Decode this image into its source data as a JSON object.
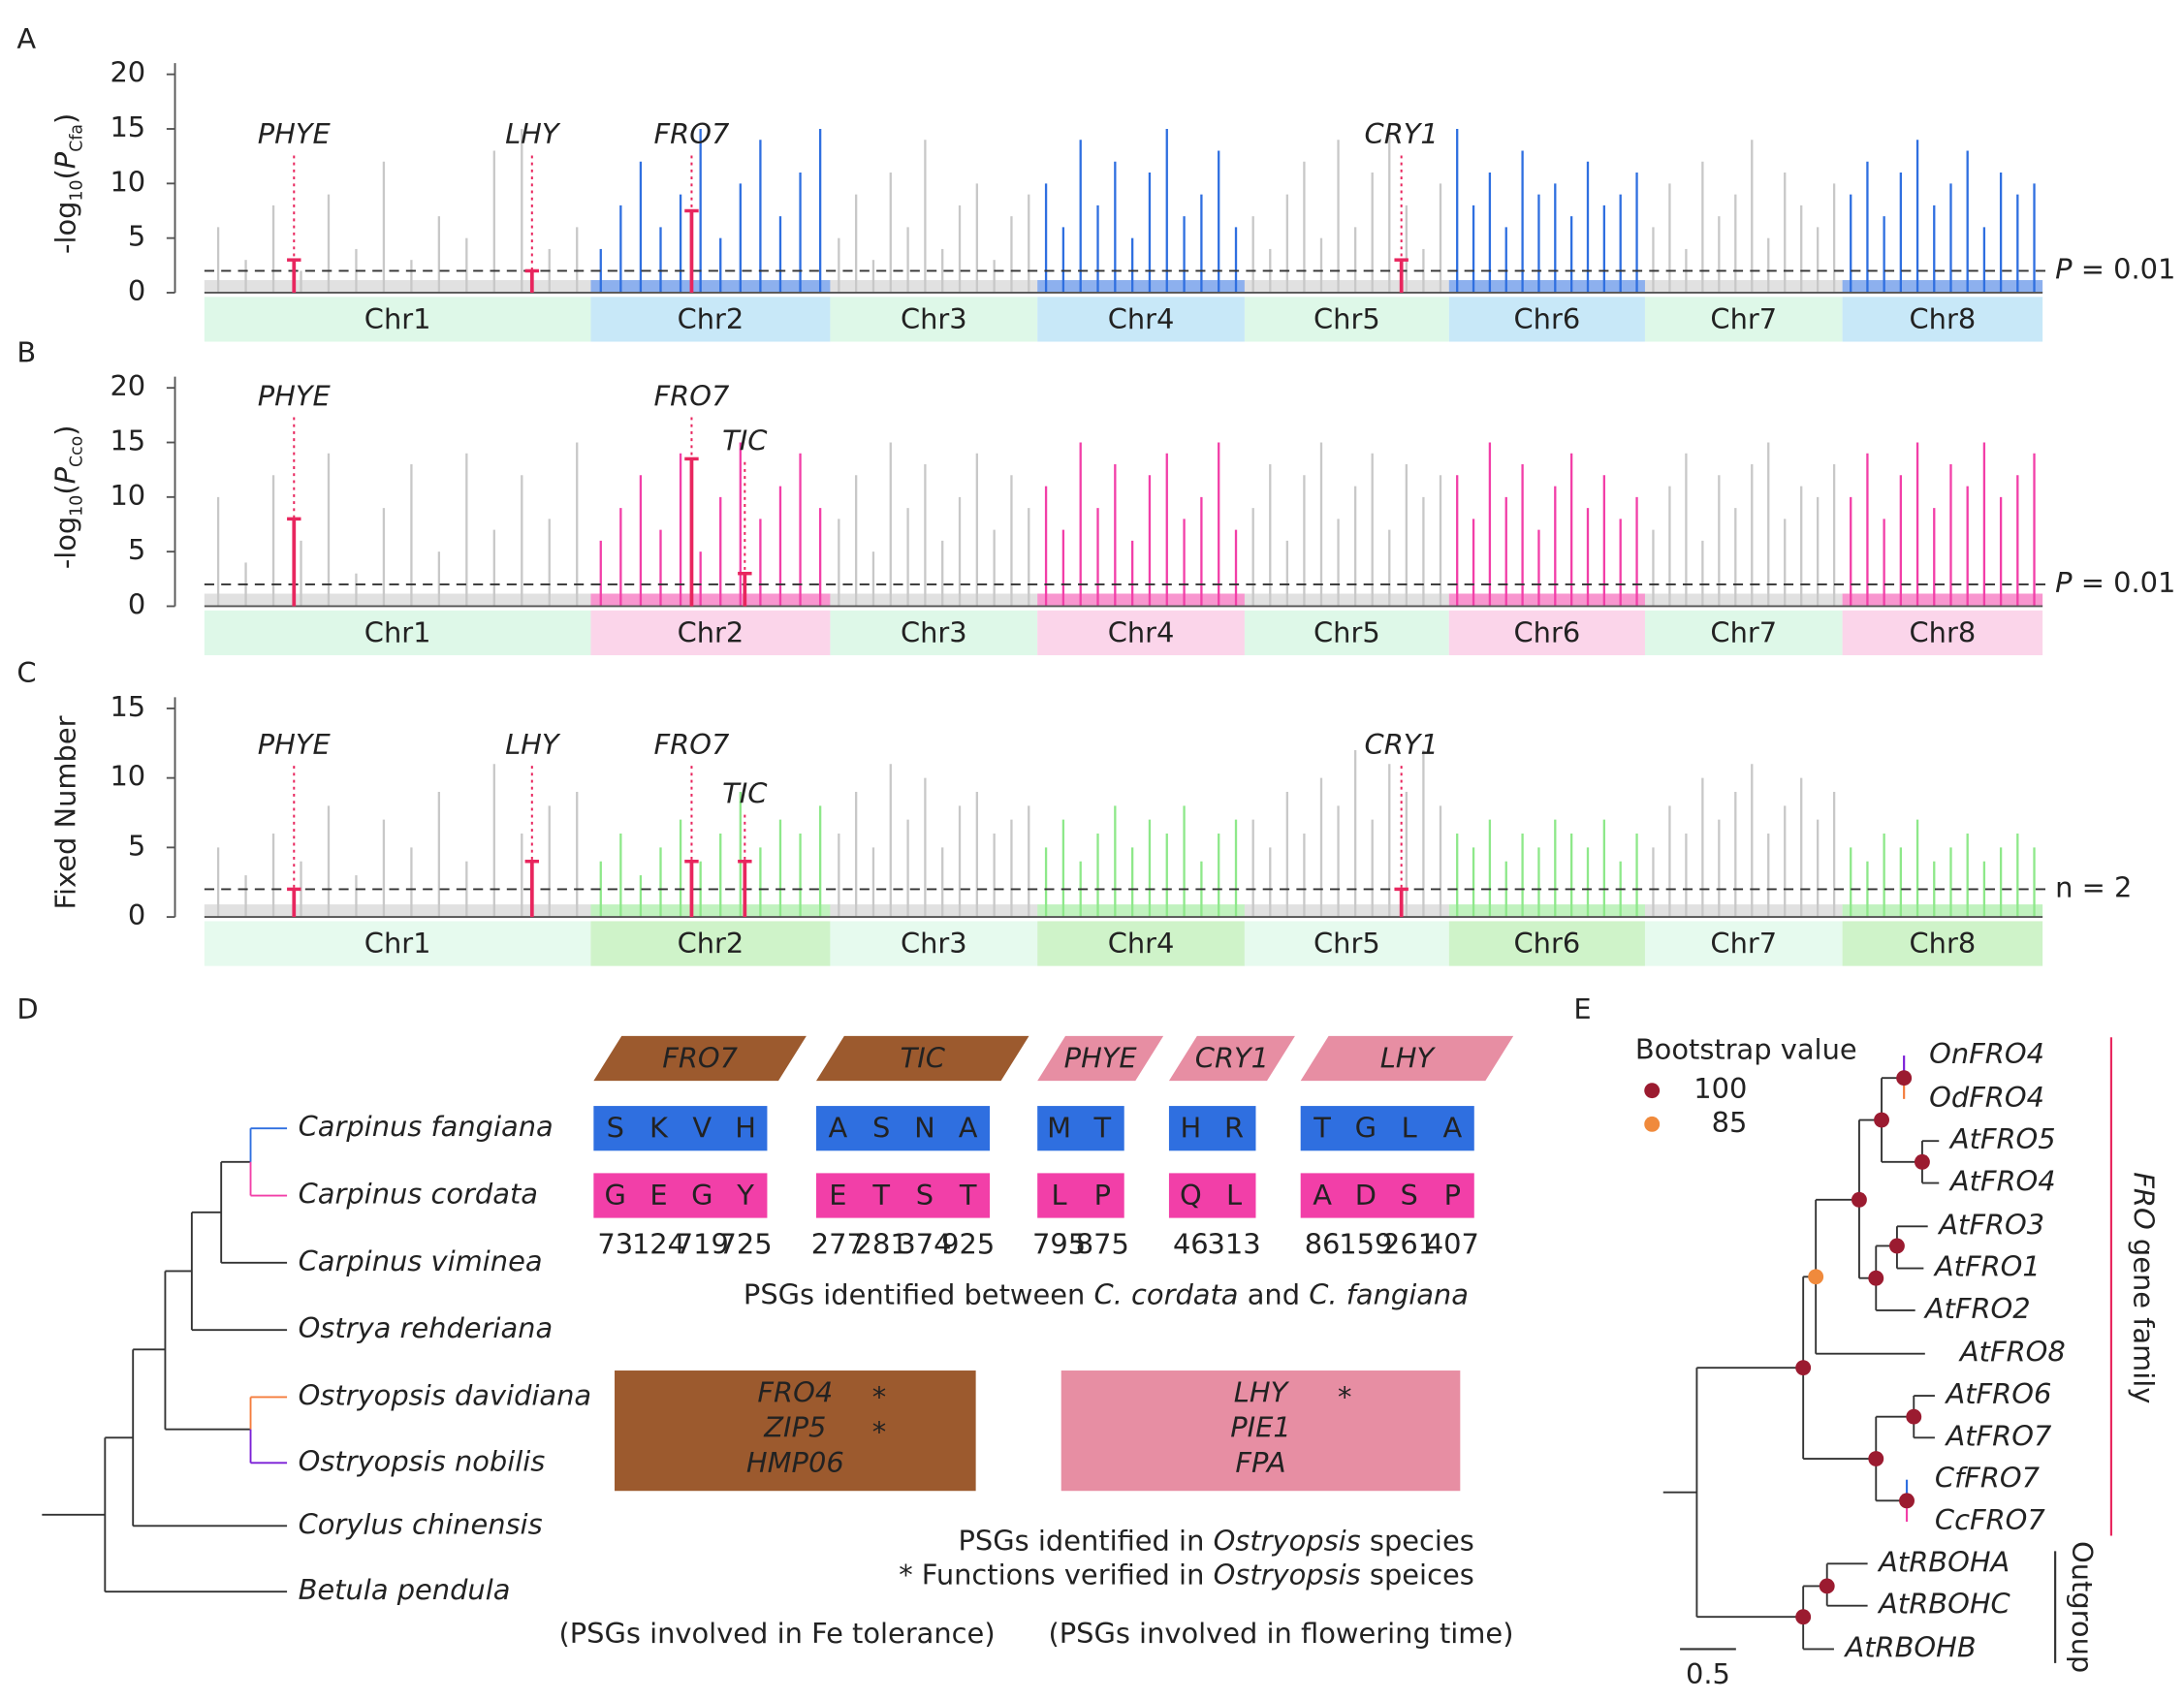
{
  "chart_data": [
    {
      "type": "bar",
      "label": "A",
      "ylabel_parts": [
        "-log",
        "10",
        "(",
        "P",
        "Cfa",
        ")"
      ],
      "ylim": [
        0,
        20
      ],
      "yticks": [
        0,
        5,
        10,
        15,
        20
      ],
      "chromosomes": [
        {
          "name": "Chr1",
          "color": "#c8c8c8",
          "band_color": "#def8e8",
          "values": [
            6,
            3,
            8,
            2,
            9,
            4,
            12,
            3,
            7,
            5,
            13,
            15,
            4,
            6
          ]
        },
        {
          "name": "Chr2",
          "color": "#2f6fe0",
          "band_color": "#c8e8f8",
          "values": [
            4,
            8,
            12,
            6,
            9,
            15,
            5,
            10,
            14,
            7,
            11,
            15
          ]
        },
        {
          "name": "Chr3",
          "color": "#c8c8c8",
          "band_color": "#def8e8",
          "values": [
            5,
            9,
            3,
            11,
            6,
            14,
            4,
            8,
            10,
            3,
            7,
            9
          ]
        },
        {
          "name": "Chr4",
          "color": "#2f6fe0",
          "band_color": "#c8e8f8",
          "values": [
            10,
            6,
            14,
            8,
            12,
            5,
            11,
            15,
            7,
            9,
            13,
            6
          ]
        },
        {
          "name": "Chr5",
          "color": "#c8c8c8",
          "band_color": "#def8e8",
          "values": [
            7,
            4,
            9,
            12,
            5,
            14,
            6,
            11,
            15,
            8,
            4,
            10
          ]
        },
        {
          "name": "Chr6",
          "color": "#2f6fe0",
          "band_color": "#c8e8f8",
          "values": [
            15,
            8,
            11,
            6,
            13,
            9,
            10,
            7,
            12,
            8,
            9,
            11
          ]
        },
        {
          "name": "Chr7",
          "color": "#c8c8c8",
          "band_color": "#def8e8",
          "values": [
            6,
            10,
            4,
            12,
            7,
            9,
            14,
            5,
            11,
            8,
            6,
            10
          ]
        },
        {
          "name": "Chr8",
          "color": "#2f6fe0",
          "band_color": "#c8e8f8",
          "values": [
            9,
            12,
            7,
            11,
            14,
            8,
            10,
            13,
            6,
            11,
            9,
            10
          ]
        }
      ],
      "threshold": {
        "value": 2,
        "label_parts": [
          "P",
          " = 0.01"
        ]
      },
      "gene_color": "#e8265e",
      "genes": [
        {
          "name": "PHYE",
          "value": 3
        },
        {
          "name": "LHY",
          "value": 2
        },
        {
          "name": "FRO7",
          "value": 7.5
        },
        {
          "name": "CRY1",
          "value": 3
        }
      ]
    },
    {
      "type": "bar",
      "label": "B",
      "ylabel_parts": [
        "-log",
        "10",
        "(",
        "P",
        "Cco",
        ")"
      ],
      "ylim": [
        0,
        20
      ],
      "yticks": [
        0,
        5,
        10,
        15,
        20
      ],
      "chromosomes": [
        {
          "name": "Chr1",
          "color": "#c8c8c8",
          "band_color": "#def8e8",
          "values": [
            10,
            4,
            12,
            6,
            14,
            3,
            9,
            13,
            5,
            14,
            7,
            12,
            8,
            15
          ]
        },
        {
          "name": "Chr2",
          "color": "#f23fa8",
          "band_color": "#fbd5ea",
          "values": [
            6,
            9,
            12,
            7,
            14,
            5,
            10,
            15,
            8,
            11,
            14,
            9
          ]
        },
        {
          "name": "Chr3",
          "color": "#c8c8c8",
          "band_color": "#def8e8",
          "values": [
            8,
            12,
            5,
            15,
            9,
            13,
            6,
            10,
            14,
            7,
            12,
            9
          ]
        },
        {
          "name": "Chr4",
          "color": "#f23fa8",
          "band_color": "#fbd5ea",
          "values": [
            11,
            7,
            15,
            9,
            13,
            6,
            12,
            14,
            8,
            10,
            15,
            7
          ]
        },
        {
          "name": "Chr5",
          "color": "#c8c8c8",
          "band_color": "#def8e8",
          "values": [
            9,
            13,
            6,
            12,
            15,
            8,
            11,
            14,
            7,
            13,
            10,
            12
          ]
        },
        {
          "name": "Chr6",
          "color": "#f23fa8",
          "band_color": "#fbd5ea",
          "values": [
            12,
            8,
            15,
            10,
            13,
            7,
            11,
            14,
            9,
            12,
            8,
            10
          ]
        },
        {
          "name": "Chr7",
          "color": "#c8c8c8",
          "band_color": "#def8e8",
          "values": [
            7,
            11,
            14,
            6,
            12,
            9,
            13,
            15,
            8,
            11,
            10,
            13
          ]
        },
        {
          "name": "Chr8",
          "color": "#f23fa8",
          "band_color": "#fbd5ea",
          "values": [
            10,
            14,
            8,
            12,
            15,
            9,
            13,
            11,
            15,
            10,
            12,
            14
          ]
        }
      ],
      "threshold": {
        "value": 2,
        "label_parts": [
          "P",
          " = 0.01"
        ]
      },
      "gene_color": "#e8265e",
      "genes": [
        {
          "name": "PHYE",
          "value": 8
        },
        {
          "name": "FRO7",
          "value": 13.5
        },
        {
          "name": "TIC",
          "value": 3
        }
      ]
    },
    {
      "type": "bar",
      "label": "C",
      "ylabel_parts": [
        "Fixed Number"
      ],
      "ylim": [
        0,
        15
      ],
      "yticks": [
        0,
        5,
        10,
        15
      ],
      "chromosomes": [
        {
          "name": "Chr1",
          "color": "#c8c8c8",
          "band_color": "#e6faee",
          "values": [
            5,
            3,
            6,
            4,
            8,
            3,
            7,
            5,
            9,
            4,
            11,
            6,
            8,
            9
          ]
        },
        {
          "name": "Chr2",
          "color": "#8ee88a",
          "band_color": "#cff3c9",
          "values": [
            4,
            6,
            3,
            5,
            7,
            4,
            6,
            9,
            5,
            7,
            6,
            8
          ]
        },
        {
          "name": "Chr3",
          "color": "#c8c8c8",
          "band_color": "#e6faee",
          "values": [
            6,
            9,
            5,
            11,
            7,
            10,
            5,
            8,
            9,
            6,
            7,
            8
          ]
        },
        {
          "name": "Chr4",
          "color": "#8ee88a",
          "band_color": "#cff3c9",
          "values": [
            5,
            7,
            4,
            6,
            8,
            5,
            7,
            6,
            8,
            4,
            6,
            7
          ]
        },
        {
          "name": "Chr5",
          "color": "#c8c8c8",
          "band_color": "#e6faee",
          "values": [
            7,
            5,
            9,
            6,
            10,
            8,
            12,
            7,
            11,
            9,
            12,
            8
          ]
        },
        {
          "name": "Chr6",
          "color": "#8ee88a",
          "band_color": "#cff3c9",
          "values": [
            6,
            5,
            7,
            4,
            6,
            5,
            7,
            6,
            5,
            7,
            4,
            6
          ]
        },
        {
          "name": "Chr7",
          "color": "#c8c8c8",
          "band_color": "#e6faee",
          "values": [
            5,
            8,
            6,
            10,
            7,
            9,
            11,
            6,
            8,
            10,
            7,
            9
          ]
        },
        {
          "name": "Chr8",
          "color": "#8ee88a",
          "band_color": "#cff3c9",
          "values": [
            5,
            4,
            6,
            5,
            7,
            4,
            5,
            6,
            4,
            5,
            6,
            5
          ]
        }
      ],
      "threshold": {
        "value": 2,
        "label_parts": [
          "n = 2"
        ]
      },
      "gene_color": "#e8265e",
      "genes": [
        {
          "name": "PHYE",
          "value": 2
        },
        {
          "name": "LHY",
          "value": 4
        },
        {
          "name": "FRO7",
          "value": 4
        },
        {
          "name": "TIC",
          "value": 4
        },
        {
          "name": "CRY1",
          "value": 2
        }
      ]
    }
  ],
  "panel_d": {
    "label": "D",
    "species": [
      {
        "name": "Carpinus fangiana",
        "color": "#2f6fe0"
      },
      {
        "name": "Carpinus cordata",
        "color": "#f23fa8"
      },
      {
        "name": "Carpinus viminea",
        "color": "#222222"
      },
      {
        "name": "Ostrya rehderiana",
        "color": "#222222"
      },
      {
        "name": "Ostryopsis davidiana",
        "color": "#f47c3c"
      },
      {
        "name": "Ostryopsis nobilis",
        "color": "#7b1fd6"
      },
      {
        "name": "Corylus chinensis",
        "color": "#222222"
      },
      {
        "name": "Betula pendula",
        "color": "#222222"
      }
    ],
    "cf_color": "#2f6fe0",
    "cc_color": "#f23fa8",
    "psgs": [
      {
        "gene": "FRO7",
        "color": "#9c5a2e",
        "cf": [
          "S",
          "K",
          "V",
          "H"
        ],
        "cc": [
          "G",
          "E",
          "G",
          "Y"
        ],
        "positions": [
          73,
          124,
          719,
          725
        ]
      },
      {
        "gene": "TIC",
        "color": "#9c5a2e",
        "cf": [
          "A",
          "S",
          "N",
          "A"
        ],
        "cc": [
          "E",
          "T",
          "S",
          "T"
        ],
        "positions": [
          277,
          281,
          374,
          925
        ]
      },
      {
        "gene": "PHYE",
        "color": "#e78ea3",
        "cf": [
          "M",
          "T"
        ],
        "cc": [
          "L",
          "P"
        ],
        "positions": [
          795,
          875
        ]
      },
      {
        "gene": "CRY1",
        "color": "#e78ea3",
        "cf": [
          "H",
          "R"
        ],
        "cc": [
          "Q",
          "L"
        ],
        "positions": [
          46,
          313
        ]
      },
      {
        "gene": "LHY",
        "color": "#e78ea3",
        "cf": [
          "T",
          "G",
          "L",
          "A"
        ],
        "cc": [
          "A",
          "D",
          "S",
          "P"
        ],
        "positions": [
          86,
          159,
          261,
          407
        ]
      }
    ],
    "psg_caption": [
      "PSGs identified between ",
      "C. cordata",
      " and ",
      "C. fangiana"
    ],
    "ostryopsis_groups": [
      {
        "color": "#9c5a2e",
        "genes": [
          {
            "name": "FRO4",
            "mark": "*"
          },
          {
            "name": "ZIP5",
            "mark": "*"
          },
          {
            "name": "HMP06"
          }
        ]
      },
      {
        "color": "#e78ea3",
        "genes": [
          {
            "name": "LHY",
            "mark": "*"
          },
          {
            "name": "PIE1"
          },
          {
            "name": "FPA"
          }
        ]
      }
    ],
    "ostryopsis_caption": [
      "PSGs identified in ",
      "Ostryopsis",
      " species"
    ],
    "verified_note": [
      "*  Functions verified in ",
      "Ostryopsis",
      " speices"
    ],
    "legend": [
      {
        "label": "(PSGs involved in Fe tolerance)",
        "color": "#9c5a2e"
      },
      {
        "label": "(PSGs involved in flowering time)",
        "color": "#e78ea3"
      }
    ]
  },
  "panel_e": {
    "label": "E",
    "legend_title": "Bootstrap value",
    "bootstrap": [
      {
        "value": 100,
        "color": "#9b1b30"
      },
      {
        "value": 85,
        "color": "#f08a3c"
      }
    ],
    "node_support": [
      100,
      100,
      100,
      100,
      100,
      100,
      85,
      100,
      100,
      100,
      100,
      100,
      100
    ],
    "leaves": [
      {
        "name": "OnFRO4",
        "color": "#7b1fd6"
      },
      {
        "name": "OdFRO4",
        "color": "#f47c3c"
      },
      {
        "name": "AtFRO5",
        "color": "#222222"
      },
      {
        "name": "AtFRO4",
        "color": "#222222"
      },
      {
        "name": "AtFRO3",
        "color": "#222222"
      },
      {
        "name": "AtFRO1",
        "color": "#222222"
      },
      {
        "name": "AtFRO2",
        "color": "#222222"
      },
      {
        "name": "AtFRO8",
        "color": "#222222"
      },
      {
        "name": "AtFRO6",
        "color": "#222222"
      },
      {
        "name": "AtFRO7",
        "color": "#222222"
      },
      {
        "name": "CfFRO7",
        "color": "#2f6fe0"
      },
      {
        "name": "CcFRO7",
        "color": "#f23fa8"
      },
      {
        "name": "AtRBOHA",
        "color": "#222222"
      },
      {
        "name": "AtRBOHC",
        "color": "#222222"
      },
      {
        "name": "AtRBOHB",
        "color": "#222222"
      }
    ],
    "family_label_parts": [
      "FRO",
      " gene family"
    ],
    "family_color": "#e8265e",
    "outgroup_label": "Outgroup",
    "scale": 0.5
  }
}
